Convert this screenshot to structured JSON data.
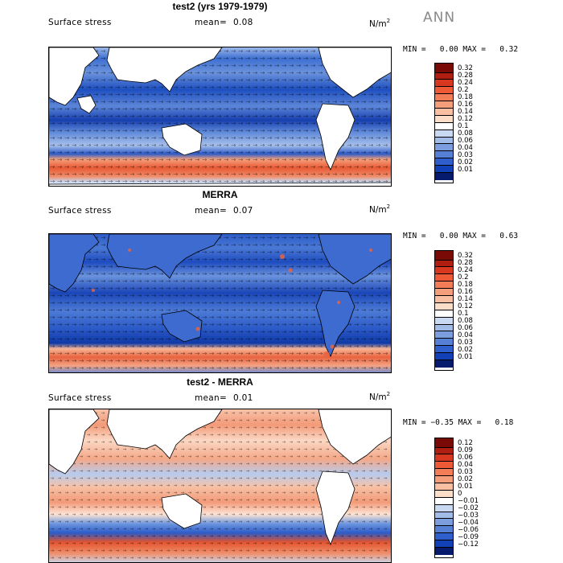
{
  "season": "ANN",
  "panels": [
    {
      "id": "model",
      "title": "test2 (yrs 1979-1979)",
      "variable": "Surface stress",
      "mean_label": "mean=",
      "mean_value": "0.08",
      "units_base": "N/m",
      "units_exp": "2",
      "min_label": "MIN =",
      "min_value": "0.00",
      "max_label": "MAX =",
      "max_value": "0.32",
      "colorbar_labels": [
        "0.32",
        "0.28",
        "0.24",
        "0.2",
        "0.18",
        "0.16",
        "0.14",
        "0.12",
        "0.1",
        "0.08",
        "0.06",
        "0.04",
        "0.03",
        "0.02",
        "0.01"
      ],
      "colorbar_colors": [
        "#7a0a05",
        "#b01e12",
        "#d7381f",
        "#ee5a36",
        "#f27d57",
        "#f59e7c",
        "#f8bfa3",
        "#fbddc8",
        "#ffffff",
        "#c9d9f2",
        "#a2bce8",
        "#7c9edf",
        "#5680d6",
        "#2f5fcc",
        "#1240b7",
        "#0a2a96",
        "#061a6e"
      ],
      "color_scale": "sequential-blue-to-red"
    },
    {
      "id": "obs",
      "title": "MERRA",
      "variable": "Surface stress",
      "mean_label": "mean=",
      "mean_value": "0.07",
      "units_base": "N/m",
      "units_exp": "2",
      "min_label": "MIN =",
      "min_value": "0.00",
      "max_label": "MAX =",
      "max_value": "0.63",
      "colorbar_labels": [
        "0.32",
        "0.28",
        "0.24",
        "0.2",
        "0.18",
        "0.16",
        "0.14",
        "0.12",
        "0.1",
        "0.08",
        "0.06",
        "0.04",
        "0.03",
        "0.02",
        "0.01"
      ],
      "colorbar_colors": [
        "#7a0a05",
        "#b01e12",
        "#d7381f",
        "#ee5a36",
        "#f27d57",
        "#f59e7c",
        "#f8bfa3",
        "#fbddc8",
        "#ffffff",
        "#c9d9f2",
        "#a2bce8",
        "#7c9edf",
        "#5680d6",
        "#2f5fcc",
        "#1240b7",
        "#0a2a96",
        "#061a6e"
      ],
      "color_scale": "sequential-blue-to-red"
    },
    {
      "id": "diff",
      "title": "test2 - MERRA",
      "variable": "Surface stress",
      "mean_label": "mean=",
      "mean_value": "0.01",
      "units_base": "N/m",
      "units_exp": "2",
      "min_label": "MIN =",
      "min_value": "−0.35",
      "max_label": "MAX =",
      "max_value": "0.18",
      "colorbar_labels": [
        "0.12",
        "0.09",
        "0.06",
        "0.04",
        "0.03",
        "0.02",
        "0.01",
        "0",
        "−0.01",
        "−0.02",
        "−0.03",
        "−0.04",
        "−0.06",
        "−0.09",
        "−0.12"
      ],
      "colorbar_colors": [
        "#7a0a05",
        "#b01e12",
        "#d7381f",
        "#ee5a36",
        "#f27d57",
        "#f59e7c",
        "#f8bfa3",
        "#fbddc8",
        "#ffffff",
        "#c9d9f2",
        "#a2bce8",
        "#7c9edf",
        "#5680d6",
        "#2f5fcc",
        "#1240b7",
        "#0a2a96",
        "#061a6e"
      ],
      "color_scale": "diverging-blue-white-red"
    }
  ],
  "continent_fill": "#ffffff",
  "coastline_color": "#000000",
  "vector_color": "#000000"
}
